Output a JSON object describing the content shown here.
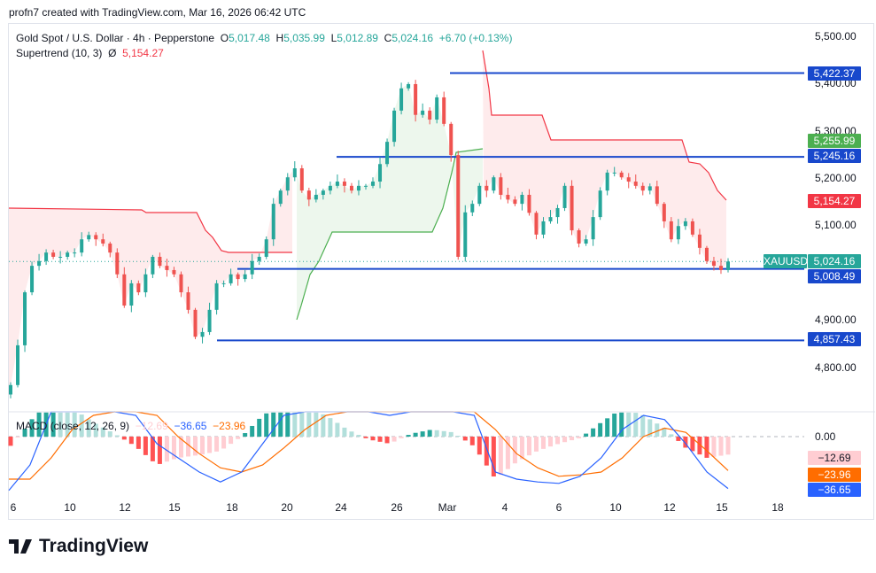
{
  "header": {
    "credit": "profn7 created with TradingView.com, Mar 16, 2026 06:42 UTC"
  },
  "legend": {
    "symbol": "Gold Spot / U.S. Dollar · 4h · Pepperstone",
    "o_label": "O",
    "o": "5,017.48",
    "h_label": "H",
    "h": "5,035.99",
    "l_label": "L",
    "l": "5,012.89",
    "c_label": "C",
    "c": "5,024.16",
    "change": "+6.70 (+0.13%)",
    "indicator": "Supertrend (10, 3)",
    "indicator_sym": "Ø",
    "indicator_value": "5,154.27"
  },
  "macd_legend": {
    "name": "MACD (close, 12, 26, 9)",
    "hist": "−12.69",
    "macd": "−36.65",
    "signal": "−23.96"
  },
  "price_axis": [
    "5,500.00",
    "5,400.00",
    "5,300.00",
    "5,200.00",
    "5,100.00",
    "4,900.00",
    "4,800.00"
  ],
  "tags": {
    "l1": "5,422.37",
    "st_green": "5,255.99",
    "l2": "5,245.16",
    "st_red": "5,154.27",
    "symbol": "XAUUSD",
    "last": "5,024.16",
    "l3": "5,008.49",
    "l4": "4,857.43",
    "macd_zero": "0.00",
    "macd_hist": "−12.69",
    "macd_signal": "−23.96",
    "macd_line": "−36.65"
  },
  "x_axis": [
    "6",
    "10",
    "12",
    "15",
    "18",
    "20",
    "24",
    "26",
    "Mar",
    "4",
    "6",
    "10",
    "12",
    "15",
    "18"
  ],
  "brand": "TradingView",
  "colors": {
    "up": "#26a69a",
    "down": "#ef5350",
    "level": "#1848cc",
    "st_up": "#4caf50",
    "st_down": "#f23645",
    "macd": "#2962ff",
    "signal": "#ff6d00"
  },
  "chart_data": {
    "type": "candlestick",
    "symbol": "XAUUSD",
    "timeframe": "4h",
    "ylim": [
      4760,
      5520
    ],
    "closes": [
      4763,
      4847,
      4959,
      5015,
      5025,
      5043,
      5034,
      5034,
      5043,
      5043,
      5071,
      5080,
      5071,
      5062,
      5043,
      4997,
      4931,
      4978,
      4959,
      4997,
      5034,
      5015,
      5006,
      4997,
      4959,
      4922,
      4865,
      4875,
      4922,
      4978,
      4978,
      4997,
      4987,
      4997,
      5025,
      5034,
      5071,
      5146,
      5174,
      5202,
      5221,
      5174,
      5155,
      5165,
      5174,
      5184,
      5193,
      5184,
      5174,
      5184,
      5184,
      5193,
      5230,
      5277,
      5343,
      5390,
      5399,
      5334,
      5343,
      5324,
      5371,
      5315,
      5249,
      5034,
      5128,
      5146,
      5184,
      5174,
      5202,
      5165,
      5155,
      5146,
      5165,
      5127,
      5081,
      5109,
      5118,
      5137,
      5184,
      5090,
      5062,
      5071,
      5118,
      5174,
      5212,
      5212,
      5202,
      5193,
      5184,
      5174,
      5183,
      5146,
      5109,
      5071,
      5099,
      5109,
      5081,
      5053,
      5025,
      5015,
      5006,
      5024.16
    ],
    "levels": [
      5422.37,
      5245.16,
      5008.49,
      4857.43
    ],
    "last_price": 5024.16,
    "supertrend": {
      "params": [
        10,
        3
      ],
      "last": 5154.27,
      "green_last": 5255.99
    },
    "macd": {
      "params": [
        12,
        26,
        9
      ],
      "ylim": [
        -40,
        18
      ],
      "macd": [
        -38,
        -20,
        20,
        25,
        25,
        22,
        15,
        -5,
        -15,
        -25,
        -32,
        -25,
        -5,
        15,
        25,
        30,
        25,
        20,
        15,
        20,
        25,
        25,
        15,
        -25,
        -30,
        -32,
        -33,
        -28,
        -15,
        5,
        15,
        12,
        -5,
        -25,
        -36.65
      ],
      "signal": [
        -30,
        -30,
        -15,
        5,
        15,
        20,
        22,
        15,
        0,
        -12,
        -22,
        -25,
        -20,
        -8,
        5,
        15,
        20,
        22,
        20,
        18,
        20,
        22,
        22,
        5,
        -12,
        -22,
        -28,
        -27,
        -25,
        -15,
        0,
        6,
        3,
        -10,
        -23.96
      ],
      "last_hist": -12.69
    }
  }
}
